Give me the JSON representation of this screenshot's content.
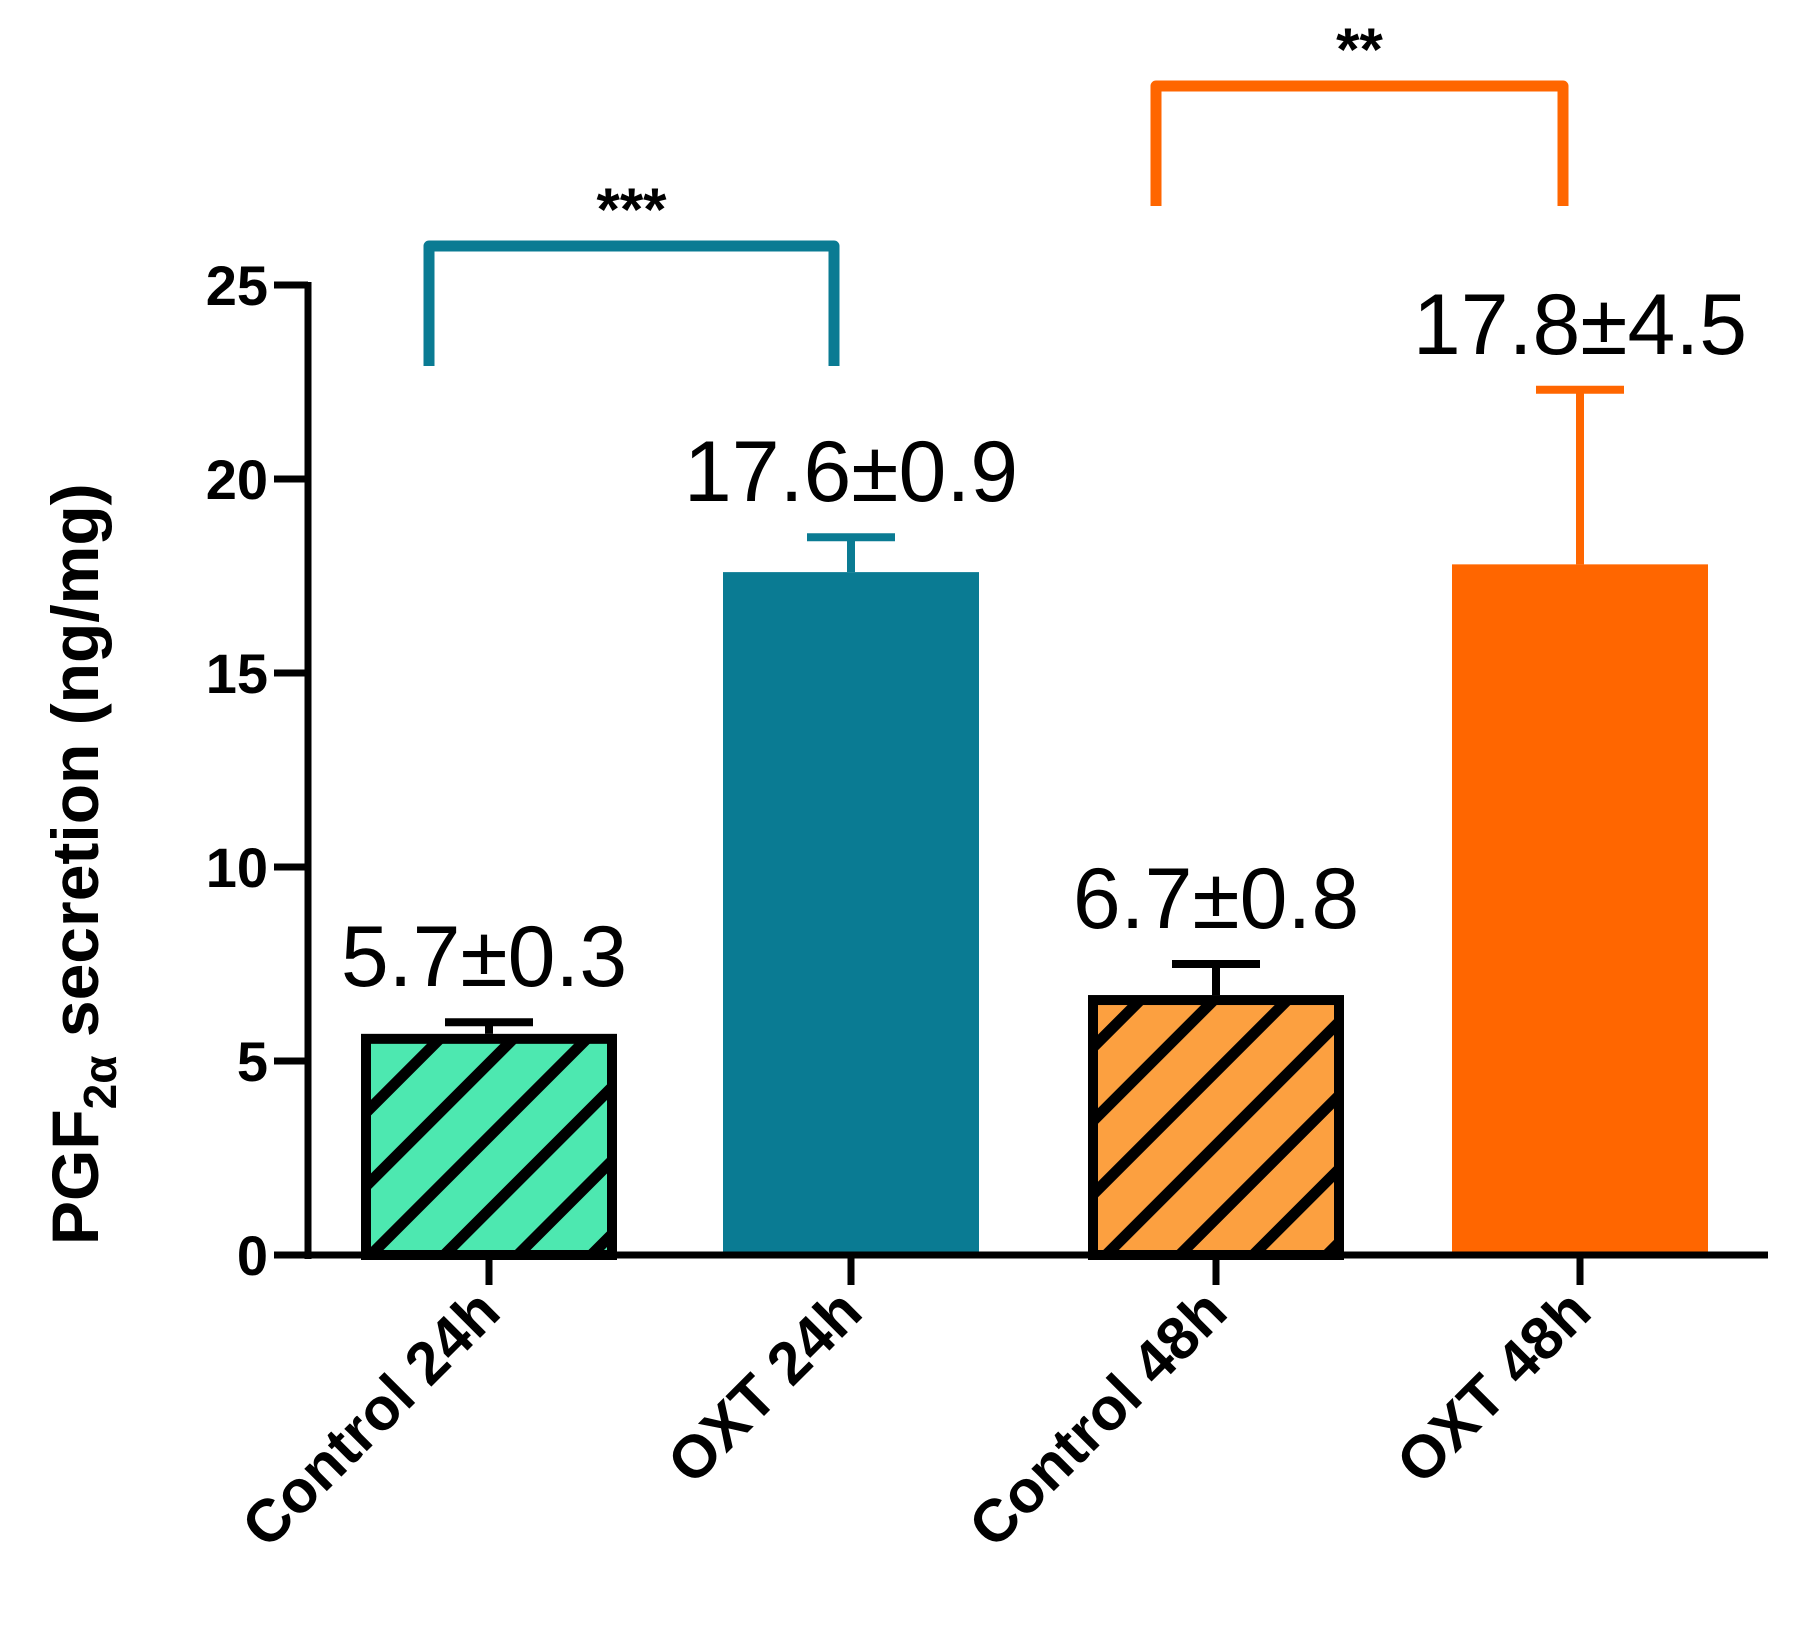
{
  "chart_data": {
    "type": "bar",
    "title": "",
    "xlabel": "",
    "ylabel": {
      "prefix": "PGF",
      "subscript": "2α",
      "suffix": " secretion (ng/mg)"
    },
    "ylim": [
      0,
      25
    ],
    "yticks": [
      0,
      5,
      10,
      15,
      20,
      25
    ],
    "grid": false,
    "categories": [
      "Control 24h",
      "OXT 24h",
      "Control 48h",
      "OXT 48h"
    ],
    "values": [
      5.7,
      17.6,
      6.7,
      17.8
    ],
    "errors": [
      0.3,
      0.9,
      0.8,
      4.5
    ],
    "data_labels": [
      "5.7±0.3",
      "17.6±0.9",
      "6.7±0.8",
      "17.8±4.5"
    ],
    "bar_styles": [
      {
        "color": "#4de8b0",
        "hatched": true
      },
      {
        "color": "#0a7b93",
        "hatched": false
      },
      {
        "color": "#fca040",
        "hatched": true
      },
      {
        "color": "#ff6600",
        "hatched": false
      }
    ],
    "significance": [
      {
        "from": 0,
        "to": 1,
        "label": "***",
        "color": "#0a7b93"
      },
      {
        "from": 2,
        "to": 3,
        "label": "**",
        "color": "#ff6600"
      }
    ]
  }
}
